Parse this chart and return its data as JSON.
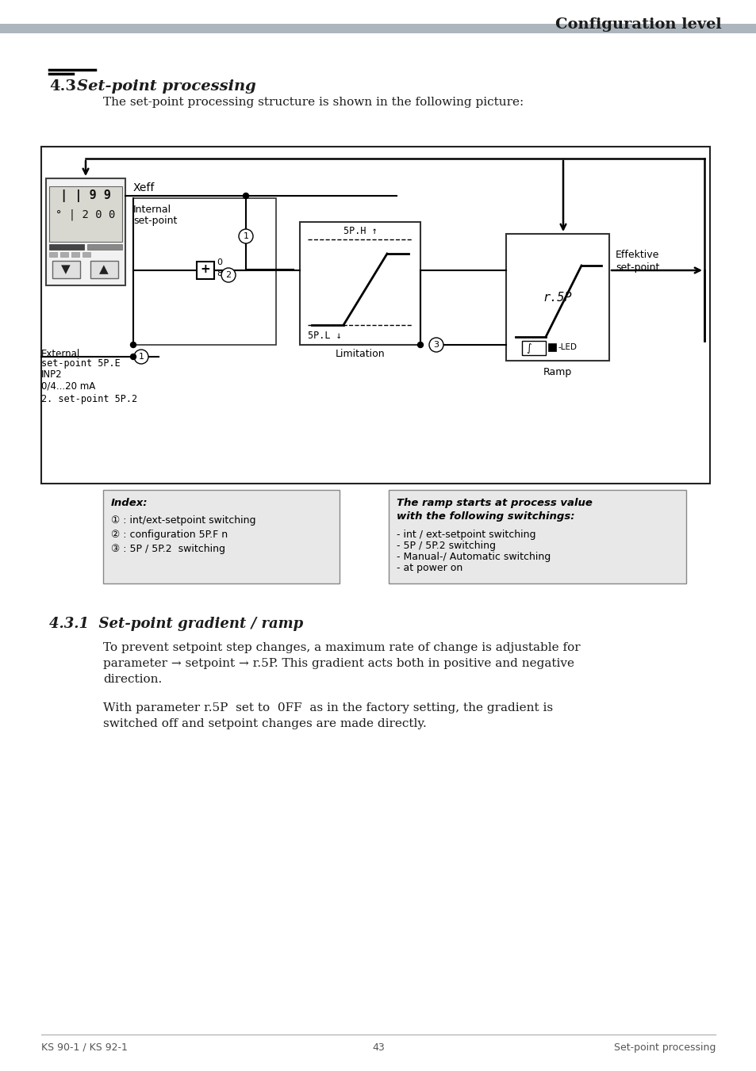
{
  "page_title": "Configuration level",
  "section_num": "4.3",
  "section_title": "Set-point processing",
  "section_body": "The set-point processing structure is shown in the following picture:",
  "subsection_title": "4.3.1  Set-point gradient / ramp",
  "sub_body1_line1": "To prevent setpoint step changes, a maximum rate of change is adjustable for",
  "sub_body1_line2": "parameter → setpoint → r.5P. This gradient acts both in positive and negative",
  "sub_body1_line3": "direction.",
  "sub_body2_line1": "With parameter r.5P  set to  0FF  as in the factory setting, the gradient is",
  "sub_body2_line2": "switched off and setpoint changes are made directly.",
  "footer_left": "KS 90-1 / KS 92-1",
  "footer_center": "43",
  "footer_right": "Set-point processing",
  "header_bar_color": "#adb5bd",
  "bg_color": "#ffffff",
  "text_dark": "#1c1c1c",
  "text_gray": "#555555",
  "diagram_line": "#1a1a1a"
}
